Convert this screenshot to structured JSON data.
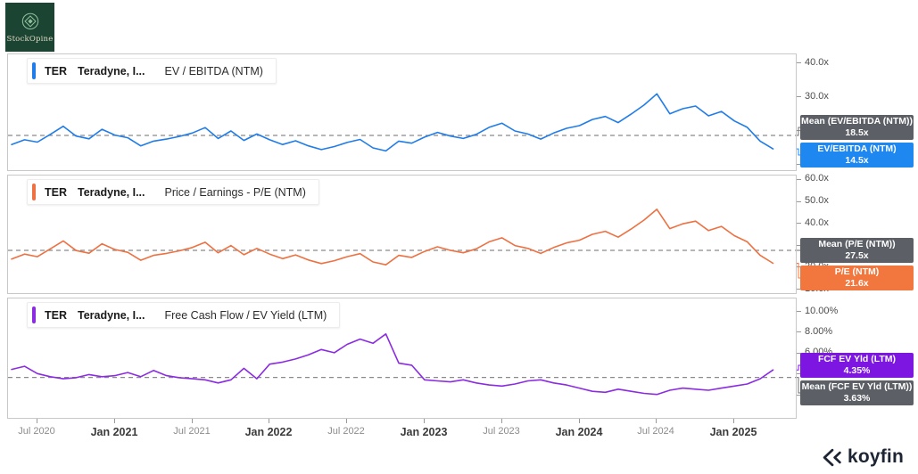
{
  "branding": {
    "stockopine": {
      "name": "StockOpine"
    },
    "koyfin": {
      "name": "koyfin"
    }
  },
  "x_axis": {
    "ticks": [
      {
        "label": "Jul 2020",
        "major": false
      },
      {
        "label": "Jan 2021",
        "major": true
      },
      {
        "label": "Jul 2021",
        "major": false
      },
      {
        "label": "Jan 2022",
        "major": true
      },
      {
        "label": "Jul 2022",
        "major": false
      },
      {
        "label": "Jan 2023",
        "major": true
      },
      {
        "label": "Jul 2023",
        "major": false
      },
      {
        "label": "Jan 2024",
        "major": true
      },
      {
        "label": "Jul 2024",
        "major": false
      },
      {
        "label": "Jan 2025",
        "major": true
      }
    ]
  },
  "colors": {
    "mean_badge": "#5c6066",
    "dashed_mean_line": "#8a8a8a",
    "connector_mean": "#6b6f73"
  },
  "months": [
    "2020-05",
    "2020-06",
    "2020-07",
    "2020-08",
    "2020-09",
    "2020-10",
    "2020-11",
    "2020-12",
    "2021-01",
    "2021-02",
    "2021-03",
    "2021-04",
    "2021-05",
    "2021-06",
    "2021-07",
    "2021-08",
    "2021-09",
    "2021-10",
    "2021-11",
    "2021-12",
    "2022-01",
    "2022-02",
    "2022-03",
    "2022-04",
    "2022-05",
    "2022-06",
    "2022-07",
    "2022-08",
    "2022-09",
    "2022-10",
    "2022-11",
    "2022-12",
    "2023-01",
    "2023-02",
    "2023-03",
    "2023-04",
    "2023-05",
    "2023-06",
    "2023-07",
    "2023-08",
    "2023-09",
    "2023-10",
    "2023-11",
    "2023-12",
    "2024-01",
    "2024-02",
    "2024-03",
    "2024-04",
    "2024-05",
    "2024-06",
    "2024-07",
    "2024-08",
    "2024-09",
    "2024-10",
    "2024-11",
    "2024-12",
    "2025-01",
    "2025-02",
    "2025-03",
    "2025-04"
  ],
  "chart_data": [
    {
      "type": "line",
      "id": "ev-ebitda",
      "legend": {
        "ticker": "TER",
        "company": "Teradyne, I...",
        "metric": "EV / EBITDA (NTM)"
      },
      "line_color": "#1f7ce8",
      "badge_color": "#1e88f0",
      "mean": {
        "label": "Mean (EV/EBITDA (NTM))",
        "display": "18.5x",
        "value": 18.5
      },
      "current": {
        "label": "EV/EBITDA (NTM)",
        "display": "14.5x",
        "value": 14.5
      },
      "badge_order": [
        "mean",
        "current"
      ],
      "y_ticks": [
        {
          "label": "40.0x",
          "value": 40
        },
        {
          "label": "30.0x",
          "value": 30
        },
        {
          "label": "20.0x",
          "value": 20
        },
        {
          "label": "10.0x",
          "value": 10
        }
      ],
      "ylim": [
        8.2,
        42.5
      ],
      "values": [
        15.8,
        17.2,
        16.5,
        18.8,
        21.2,
        18.3,
        17.5,
        20.3,
        18.6,
        17.8,
        15.4,
        16.8,
        17.4,
        18.2,
        19.2,
        20.8,
        17.6,
        19.8,
        17.0,
        18.9,
        17.2,
        15.8,
        16.9,
        15.4,
        14.3,
        15.2,
        16.4,
        17.3,
        14.8,
        13.9,
        16.8,
        16.2,
        18.0,
        19.4,
        18.3,
        17.6,
        18.8,
        20.9,
        22.1,
        19.8,
        18.9,
        17.4,
        19.2,
        20.6,
        21.4,
        23.2,
        24.1,
        22.3,
        24.8,
        27.5,
        30.8,
        24.9,
        26.4,
        27.2,
        24.3,
        25.6,
        22.8,
        20.9,
        16.8,
        14.5
      ]
    },
    {
      "type": "line",
      "id": "pe-ntm",
      "legend": {
        "ticker": "TER",
        "company": "Teradyne, I...",
        "metric": "Price / Earnings - P/E (NTM)"
      },
      "line_color": "#ed7142",
      "badge_color": "#f2773e",
      "mean": {
        "label": "Mean (P/E (NTM))",
        "display": "27.5x",
        "value": 27.5
      },
      "current": {
        "label": "P/E (NTM)",
        "display": "21.6x",
        "value": 21.6
      },
      "badge_order": [
        "mean",
        "current"
      ],
      "y_ticks": [
        {
          "label": "60.0x",
          "value": 60
        },
        {
          "label": "50.0x",
          "value": 50
        },
        {
          "label": "40.0x",
          "value": 40
        },
        {
          "label": "30.0x",
          "value": 30
        },
        {
          "label": "20.0x",
          "value": 20
        },
        {
          "label": "10.0x",
          "value": 10
        }
      ],
      "ylim": [
        8.0,
        61.6
      ],
      "values": [
        23.5,
        25.8,
        24.6,
        28.2,
        31.8,
        27.4,
        26.2,
        30.5,
        27.9,
        26.6,
        23.0,
        25.2,
        26.1,
        27.3,
        28.8,
        31.2,
        26.4,
        29.7,
        25.5,
        28.4,
        25.8,
        23.7,
        25.4,
        23.1,
        21.5,
        22.8,
        24.6,
        26.0,
        22.2,
        20.9,
        25.2,
        24.3,
        27.0,
        29.1,
        27.5,
        26.4,
        28.2,
        31.4,
        33.2,
        29.7,
        28.4,
        26.1,
        28.8,
        30.9,
        32.1,
        34.8,
        36.2,
        33.5,
        37.2,
        41.3,
        46.2,
        37.4,
        39.6,
        40.8,
        36.5,
        38.4,
        34.2,
        31.4,
        25.2,
        21.6
      ]
    },
    {
      "type": "line",
      "id": "fcf-ev-yield",
      "legend": {
        "ticker": "TER",
        "company": "Teradyne, I...",
        "metric": "Free Cash Flow / EV Yield (LTM)"
      },
      "line_color": "#8b2be2",
      "badge_color": "#7c16e0",
      "mean": {
        "label": "Mean (FCF EV Yld (LTM))",
        "display": "3.63%",
        "value": 3.63
      },
      "current": {
        "label": "FCF EV Yld (LTM)",
        "display": "4.35%",
        "value": 4.35
      },
      "badge_order": [
        "current",
        "mean"
      ],
      "y_ticks": [
        {
          "label": "10.00%",
          "value": 10
        },
        {
          "label": "8.00%",
          "value": 8
        },
        {
          "label": "6.00%",
          "value": 6
        },
        {
          "label": "4.00%",
          "value": 4
        },
        {
          "label": "2.00%",
          "value": 2
        }
      ],
      "ylim": [
        -0.25,
        11.2
      ],
      "values": [
        4.4,
        4.7,
        4.0,
        3.7,
        3.5,
        3.6,
        3.9,
        3.7,
        3.8,
        4.1,
        3.7,
        4.3,
        3.8,
        3.6,
        3.5,
        3.4,
        3.1,
        3.4,
        4.5,
        3.5,
        4.9,
        5.1,
        5.4,
        5.8,
        6.3,
        6.0,
        6.8,
        7.3,
        6.9,
        7.8,
        5.0,
        4.8,
        3.4,
        3.3,
        3.2,
        3.4,
        3.1,
        2.9,
        2.8,
        3.0,
        3.3,
        3.4,
        3.1,
        2.9,
        2.6,
        2.3,
        2.2,
        2.5,
        2.3,
        2.1,
        2.0,
        2.4,
        2.6,
        2.5,
        2.4,
        2.6,
        2.8,
        3.0,
        3.5,
        4.35
      ]
    }
  ]
}
